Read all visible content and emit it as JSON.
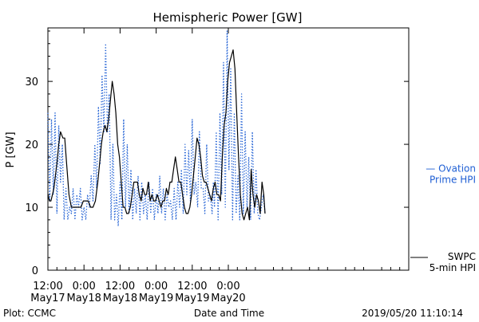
{
  "chart_data": {
    "type": "line",
    "title": "Hemispheric Power [GW]",
    "xlabel": "Date and Time",
    "ylabel": "P [GW]",
    "ylim": [
      0,
      38.5
    ],
    "yticks": [
      0,
      10,
      20,
      30
    ],
    "xlim": [
      0,
      120
    ],
    "x_unit_note": "hours after 2019/05/17 12:00",
    "xticks": [
      {
        "x": 0,
        "time": "12:00",
        "date": "May17"
      },
      {
        "x": 12,
        "time": "0:00",
        "date": "May18"
      },
      {
        "x": 24,
        "time": "12:00",
        "date": "May18"
      },
      {
        "x": 36,
        "time": "0:00",
        "date": "May19"
      },
      {
        "x": 48,
        "time": "12:00",
        "date": "May19"
      },
      {
        "x": 60,
        "time": "0:00",
        "date": "May20"
      }
    ],
    "series": [
      {
        "name": "Ovation Prime HPI",
        "color": "#1f5fd4",
        "style": "dotted",
        "x": [
          0,
          0.6,
          1.2,
          1.8,
          2.4,
          3.0,
          3.6,
          4.2,
          4.8,
          5.4,
          6.0,
          6.6,
          7.2,
          7.8,
          8.4,
          9.0,
          9.6,
          10.2,
          10.8,
          11.4,
          12.0,
          12.6,
          13.2,
          13.8,
          14.4,
          15.0,
          15.6,
          16.2,
          16.8,
          17.4,
          18.0,
          18.6,
          19.2,
          19.8,
          20.4,
          21.0,
          21.6,
          22.2,
          22.8,
          23.4,
          24.0,
          24.6,
          25.2,
          25.8,
          26.4,
          27.0,
          27.6,
          28.2,
          28.8,
          29.4,
          30.0,
          30.6,
          31.2,
          31.8,
          32.4,
          33.0,
          33.6,
          34.2,
          34.8,
          35.4,
          36.0,
          36.6,
          37.2,
          37.8,
          38.4,
          39.0,
          39.6,
          40.2,
          40.8,
          41.4,
          42.0,
          42.6,
          43.2,
          43.8,
          44.4,
          45.0,
          45.6,
          46.2,
          46.8,
          47.4,
          48.0,
          48.6,
          49.2,
          49.8,
          50.4,
          51.0,
          51.6,
          52.2,
          52.8,
          53.4,
          54.0,
          54.6,
          55.0,
          55.4,
          56.0,
          56.6,
          57.2,
          57.8,
          58.4,
          59.0,
          59.6,
          60.2,
          60.8,
          61.4,
          62.0,
          62.6,
          63.2,
          63.8,
          64.4,
          65.0,
          65.6,
          66.2,
          66.8,
          67.4,
          68.0,
          68.6,
          69.2,
          69.8,
          70.4,
          71.0,
          71.6,
          72.2
        ],
        "values": [
          25,
          11,
          24,
          12,
          25,
          9,
          23,
          14,
          20,
          8,
          13,
          8,
          10,
          9,
          13,
          8,
          12,
          10,
          13,
          8,
          10,
          8,
          12,
          10,
          15,
          11,
          20,
          13,
          26,
          17,
          31,
          22,
          36,
          22,
          28,
          8,
          20,
          8,
          12,
          7,
          14,
          8,
          24,
          10,
          20,
          9,
          16,
          8,
          13,
          9,
          15,
          8,
          14,
          9,
          12,
          8,
          14,
          9,
          13,
          8,
          12,
          9,
          15,
          9,
          13,
          8,
          12,
          10,
          11,
          8,
          13,
          8,
          14,
          10,
          16,
          9,
          20,
          12,
          19,
          11,
          24,
          12,
          14,
          10,
          22,
          13,
          13,
          9,
          20,
          11,
          12,
          9,
          14,
          10,
          22,
          8,
          25,
          12,
          33,
          10,
          38,
          16,
          32,
          8,
          25,
          9,
          15,
          8,
          28,
          9,
          22,
          10,
          18,
          8,
          22,
          9,
          16,
          9,
          8,
          10,
          12,
          9
        ]
      },
      {
        "name": "SWPC 5-min HPI",
        "color": "#000000",
        "style": "solid",
        "x": [
          0,
          0.5,
          1.0,
          1.5,
          2.0,
          3.0,
          3.6,
          4.2,
          5.0,
          5.6,
          6.2,
          7.0,
          7.8,
          8.6,
          9.4,
          10.2,
          11.0,
          11.8,
          12.6,
          13.4,
          14.2,
          15.0,
          15.8,
          16.6,
          17.2,
          17.8,
          18.4,
          19.0,
          19.6,
          20.2,
          20.8,
          21.4,
          22.0,
          22.6,
          23.2,
          23.8,
          24.4,
          25.0,
          25.6,
          26.2,
          26.8,
          27.4,
          28.0,
          28.6,
          29.2,
          29.8,
          30.4,
          31.0,
          31.6,
          32.2,
          32.8,
          33.4,
          34.0,
          34.6,
          35.2,
          35.8,
          36.4,
          37.0,
          37.6,
          38.2,
          38.8,
          39.4,
          40.0,
          40.6,
          41.2,
          41.8,
          42.4,
          43.0,
          43.6,
          44.2,
          44.8,
          45.4,
          46.0,
          46.6,
          47.2,
          47.8,
          48.4,
          49.0,
          49.6,
          50.2,
          50.8,
          51.4,
          52.0,
          52.6,
          53.2,
          53.8,
          54.4,
          55.0,
          55.6,
          56.2,
          56.8,
          57.4,
          58.0,
          58.6,
          59.2,
          59.8,
          60.4,
          61.0,
          61.6,
          62.2,
          62.8,
          63.4,
          64.0,
          64.6,
          65.2,
          65.8,
          66.4,
          67.0,
          67.6,
          68.2,
          68.8,
          69.4,
          70.0,
          70.6,
          71.2,
          71.8,
          72.2
        ],
        "values": [
          12,
          11,
          11,
          12,
          13,
          17,
          20,
          22,
          21,
          21,
          17,
          12,
          10,
          10,
          10,
          10,
          10,
          11,
          11,
          11,
          10,
          10,
          11,
          14,
          17,
          20,
          22,
          23,
          22,
          24,
          27,
          30,
          28,
          25,
          20,
          18,
          14,
          10,
          10,
          9,
          9,
          10,
          12,
          14,
          14,
          14,
          12,
          11,
          13,
          12,
          12,
          14,
          11,
          12,
          11,
          11,
          12,
          11,
          10,
          11,
          11,
          13,
          12,
          14,
          14,
          16,
          18,
          16,
          14,
          14,
          12,
          10,
          9,
          9,
          10,
          12,
          15,
          18,
          21,
          20,
          18,
          15,
          14,
          14,
          13,
          12,
          11,
          13,
          14,
          12,
          12,
          11,
          18,
          23,
          25,
          30,
          33,
          34,
          35,
          32,
          25,
          18,
          12,
          9,
          8,
          9,
          10,
          8,
          16,
          12,
          10,
          12,
          11,
          9,
          14,
          12,
          9
        ]
      }
    ],
    "legend": [
      {
        "line1": "— Ovation",
        "line2": "Prime HPI",
        "color": "#1f5fd4",
        "anchor_value": 16
      },
      {
        "line1": "SWPC",
        "line2": "5-min HPI",
        "color": "#000000",
        "anchor_value": 2
      }
    ]
  },
  "footer": {
    "left": "Plot: CCMC",
    "center": "Date and Time",
    "right": "2019/05/20 11:10:14"
  }
}
